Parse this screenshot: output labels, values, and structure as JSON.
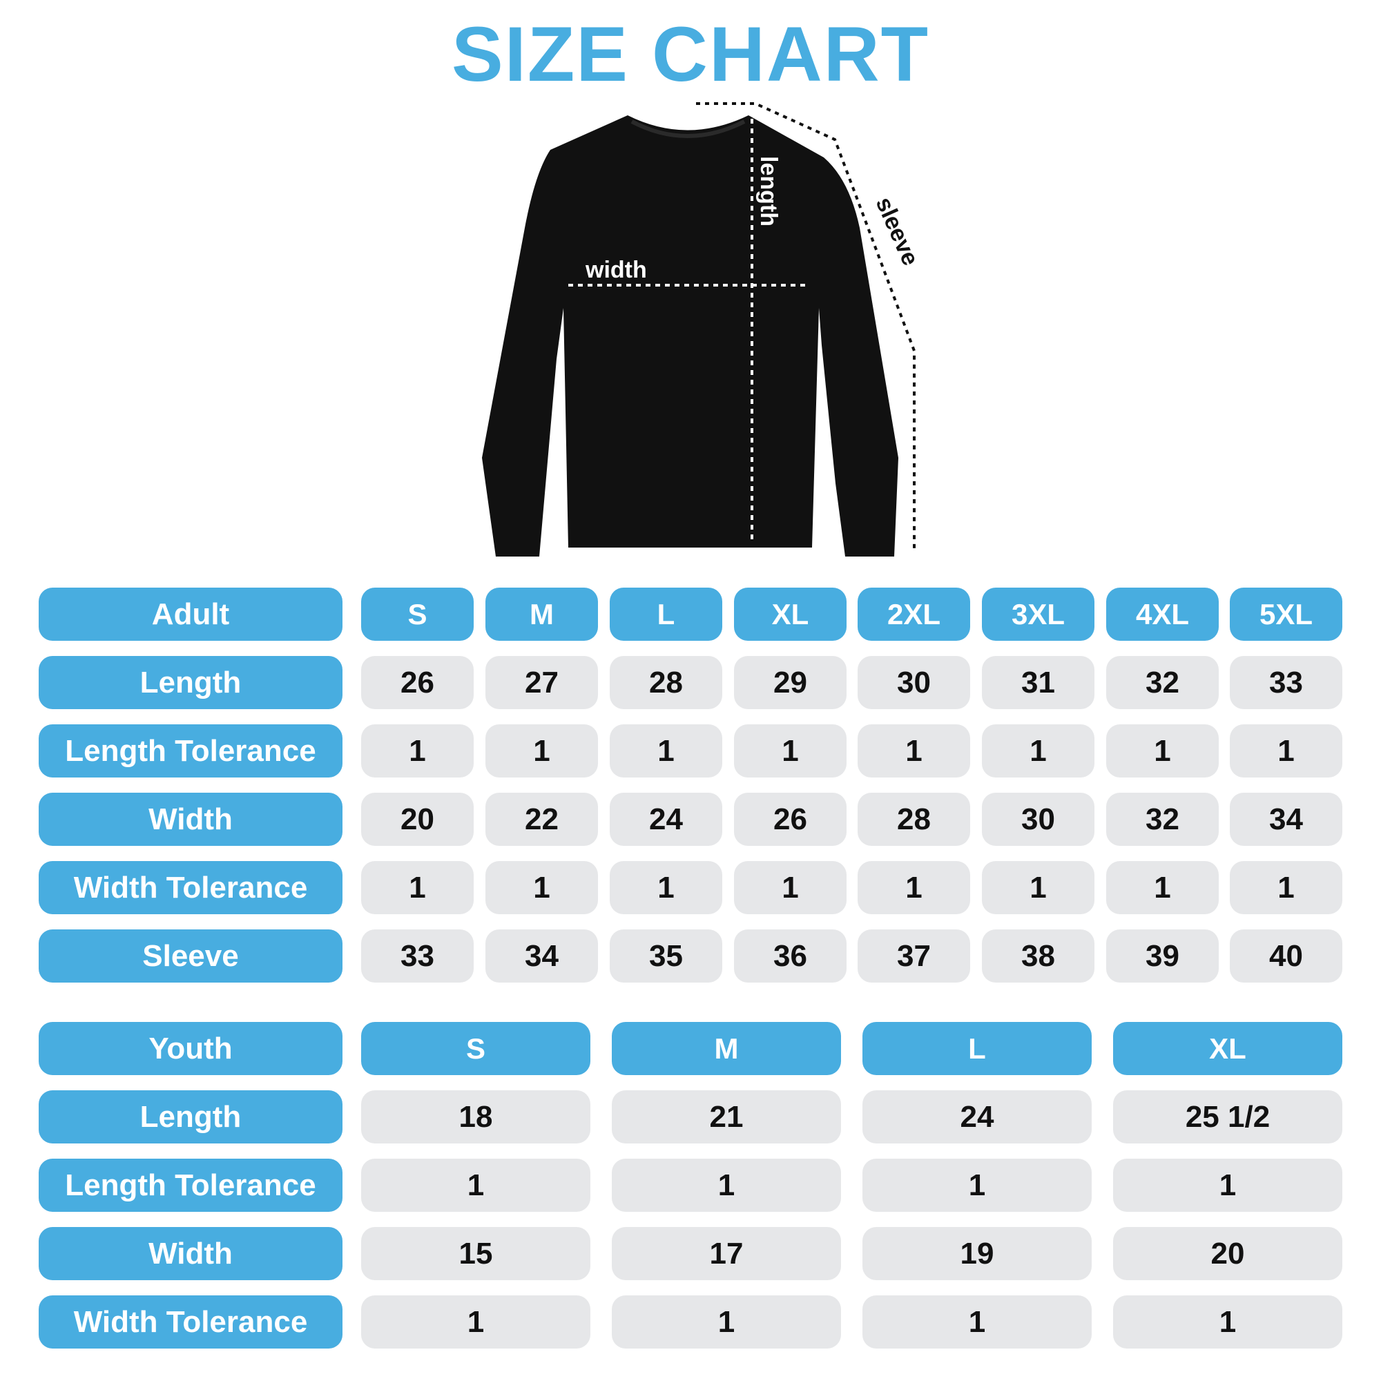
{
  "title": "SIZE CHART",
  "colors": {
    "accent": "#48ADE0",
    "cell_bg": "#E6E7E9",
    "garment": "#111111"
  },
  "garment": {
    "type": "sweatshirt",
    "labels": {
      "width": "width",
      "length": "length",
      "sleeve": "sleeve"
    }
  },
  "adult": {
    "header": "Adult",
    "sizes": [
      "S",
      "M",
      "L",
      "XL",
      "2XL",
      "3XL",
      "4XL",
      "5XL"
    ],
    "rows": [
      {
        "label": "Length",
        "values": [
          "26",
          "27",
          "28",
          "29",
          "30",
          "31",
          "32",
          "33"
        ]
      },
      {
        "label": "Length Tolerance",
        "values": [
          "1",
          "1",
          "1",
          "1",
          "1",
          "1",
          "1",
          "1"
        ]
      },
      {
        "label": "Width",
        "values": [
          "20",
          "22",
          "24",
          "26",
          "28",
          "30",
          "32",
          "34"
        ]
      },
      {
        "label": "Width Tolerance",
        "values": [
          "1",
          "1",
          "1",
          "1",
          "1",
          "1",
          "1",
          "1"
        ]
      },
      {
        "label": "Sleeve",
        "values": [
          "33",
          "34",
          "35",
          "36",
          "37",
          "38",
          "39",
          "40"
        ]
      }
    ]
  },
  "youth": {
    "header": "Youth",
    "sizes": [
      "S",
      "M",
      "L",
      "XL"
    ],
    "rows": [
      {
        "label": "Length",
        "values": [
          "18",
          "21",
          "24",
          "25 1/2"
        ]
      },
      {
        "label": "Length Tolerance",
        "values": [
          "1",
          "1",
          "1",
          "1"
        ]
      },
      {
        "label": "Width",
        "values": [
          "15",
          "17",
          "19",
          "20"
        ]
      },
      {
        "label": "Width Tolerance",
        "values": [
          "1",
          "1",
          "1",
          "1"
        ]
      }
    ]
  }
}
